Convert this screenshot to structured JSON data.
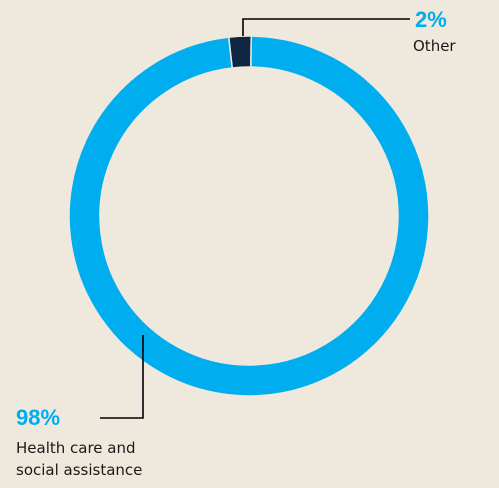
{
  "colors": {
    "background": "#efe8dc",
    "health": "#00aeef",
    "other": "#0f2743",
    "text": "#1a1a1a",
    "leader": "#000000"
  },
  "chart_data": {
    "type": "pie",
    "variant": "donut",
    "title": "",
    "slices": [
      {
        "key": "health",
        "label_lines": [
          "Health care and",
          "social assistance"
        ],
        "value": 98,
        "pct_text": "98%",
        "color": "#00aeef"
      },
      {
        "key": "other",
        "label_lines": [
          "Other"
        ],
        "value": 2,
        "pct_text": "2%",
        "color": "#0f2743"
      }
    ]
  }
}
